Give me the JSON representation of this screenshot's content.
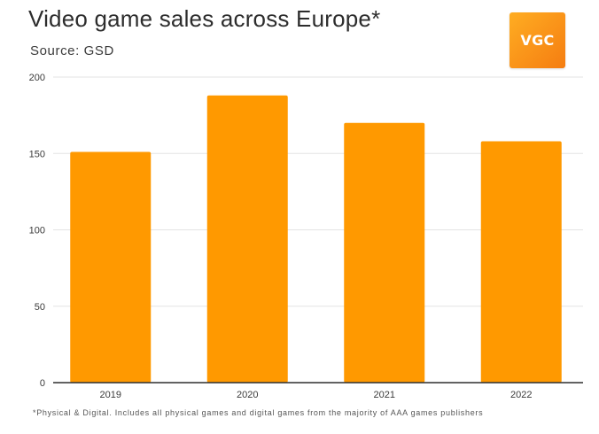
{
  "header": {
    "title": "Video game sales across Europe*",
    "source": "Source: GSD",
    "logo_text": "VGC"
  },
  "footnote": "*Physical & Digital. Includes all physical games and digital games from the majority of AAA games publishers",
  "colors": {
    "bar": "#ff9900",
    "grid": "#e3e3e3",
    "axis": "#2f2f2f",
    "logo": "#f7931e"
  },
  "chart_data": {
    "type": "bar",
    "title": "Video game sales across Europe*",
    "subtitle": "Source: GSD",
    "categories": [
      "2019",
      "2020",
      "2021",
      "2022"
    ],
    "values": [
      151,
      188,
      170,
      158
    ],
    "ylim": [
      0,
      200
    ],
    "yticks": [
      0,
      50,
      100,
      150,
      200
    ],
    "xlabel": "",
    "ylabel": "",
    "grid": true,
    "legend": "none"
  }
}
